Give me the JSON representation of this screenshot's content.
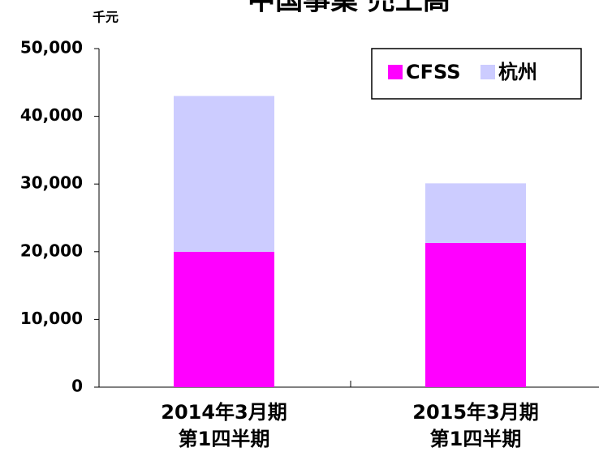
{
  "chart_data": {
    "type": "stacked_bar",
    "title": "中国事業 売上高",
    "y_unit": "千元",
    "categories": [
      [
        "2014年3月期",
        "第1四半期"
      ],
      [
        "2015年3月期",
        "第1四半期"
      ]
    ],
    "series": [
      {
        "name": "CFSS",
        "color": "#ff00ff",
        "values": [
          20000,
          21300
        ]
      },
      {
        "name": "杭州",
        "color": "#ccccff",
        "values": [
          23000,
          8800
        ]
      }
    ],
    "ylim": [
      0,
      50000
    ],
    "yticks": [
      0,
      {
        "value": 10000,
        "label": "10,000"
      },
      {
        "value": 20000,
        "label": "20,000"
      },
      {
        "value": 30000,
        "label": "30,000"
      },
      {
        "value": 40000,
        "label": "40,000"
      },
      {
        "value": 50000,
        "label": "50,000"
      }
    ],
    "legend": "upper right"
  }
}
